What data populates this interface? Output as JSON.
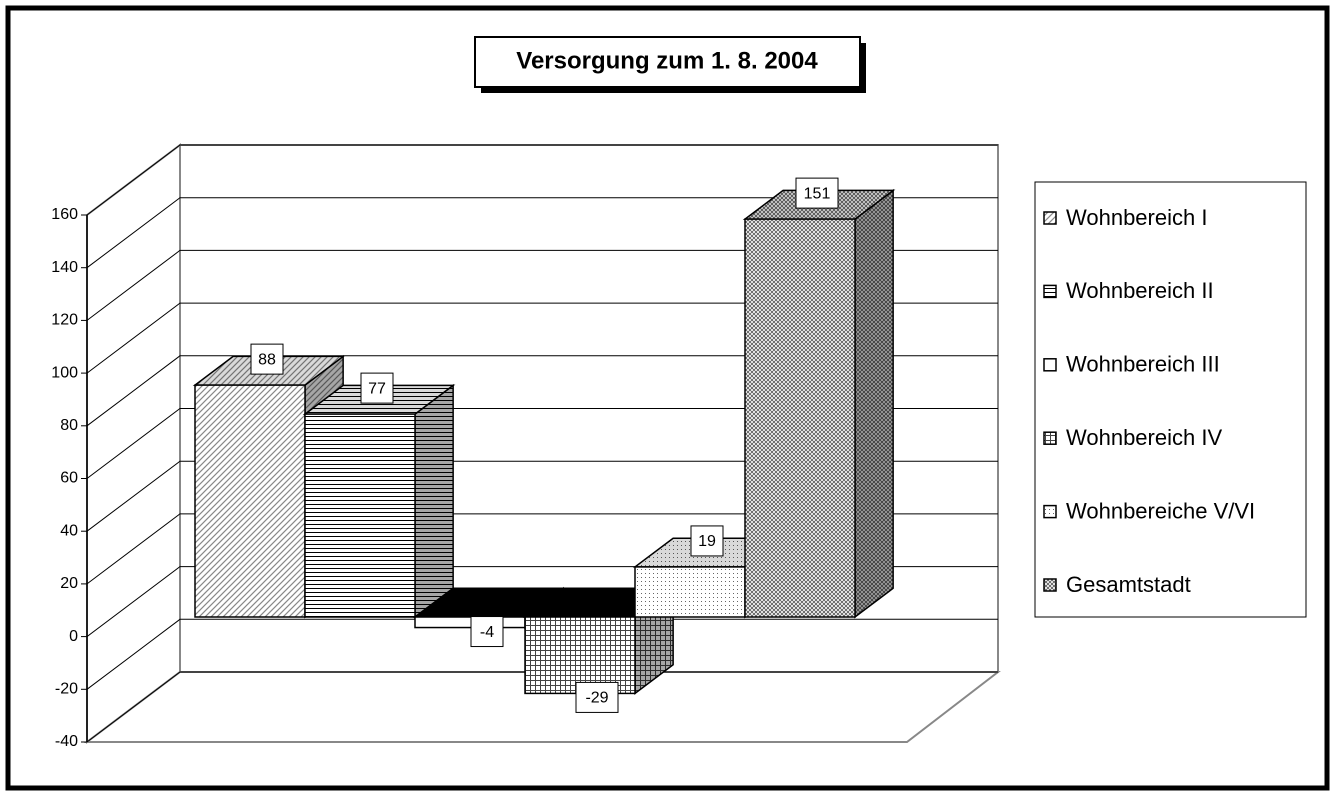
{
  "chart_data": {
    "type": "bar3d",
    "title": "Versorgung zum 1. 8. 2004",
    "series": [
      {
        "name": "Wohnbereich I",
        "color": "#888888",
        "pattern": "diagonal",
        "values": [
          88
        ]
      },
      {
        "name": "Wohnbereich II",
        "color": "#000000",
        "pattern": "horizontal",
        "values": [
          77
        ]
      },
      {
        "name": "Wohnbereich III",
        "color": "#ffffff",
        "pattern": "solid",
        "values": [
          -4
        ]
      },
      {
        "name": "Wohnbereich IV",
        "color": "#444444",
        "pattern": "grid",
        "values": [
          -29
        ]
      },
      {
        "name": "Wohnbereiche V/VI",
        "color": "#666666",
        "pattern": "dots",
        "values": [
          19
        ]
      },
      {
        "name": "Gesamtstadt",
        "color": "#555555",
        "pattern": "cross",
        "values": [
          151
        ]
      }
    ],
    "ylim": [
      -40,
      160
    ],
    "yticks": [
      -40,
      -20,
      0,
      20,
      40,
      60,
      80,
      100,
      120,
      140,
      160
    ],
    "grid": true,
    "legend": "right"
  }
}
